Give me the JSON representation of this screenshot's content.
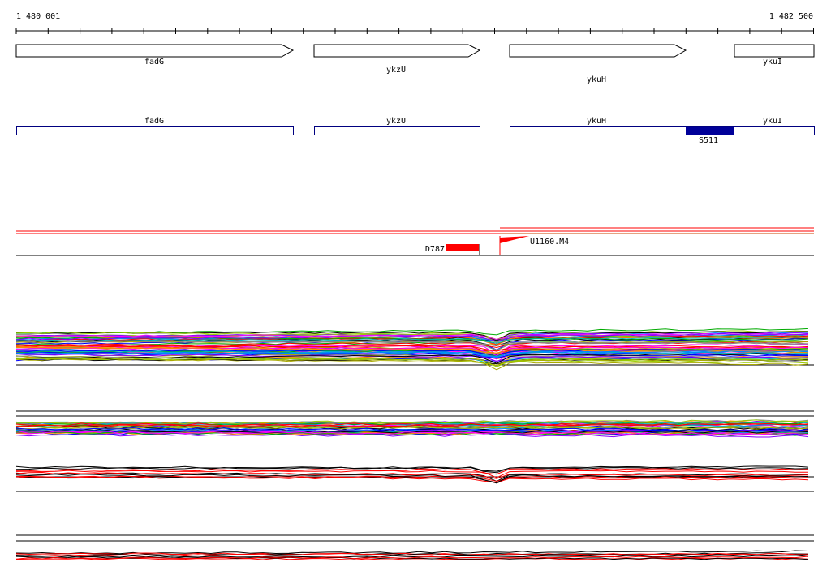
{
  "ruler": {
    "start_label": "1 480 001",
    "end_label": "1 482 500"
  },
  "genes": [
    {
      "name": "fadG",
      "strand": "+"
    },
    {
      "name": "ykzU",
      "strand": "+"
    },
    {
      "name": "ykuH",
      "strand": "+"
    },
    {
      "name": "ykuI",
      "strand": "+"
    }
  ],
  "annotations": [
    {
      "name": "fadG"
    },
    {
      "name": "ykzU"
    },
    {
      "name": "ykuH"
    },
    {
      "name": "ykuI"
    }
  ],
  "feature_label": "S511",
  "segments": [
    {
      "name": "D787",
      "color": "#ff0000"
    },
    {
      "name": "U1160.M4",
      "color": "#ff0000"
    }
  ],
  "colors": {
    "annotation_border": "#000080",
    "feature_fill": "#000099",
    "segment": "#ff0000",
    "profile_palette": [
      "#ff0000",
      "#00aa00",
      "#0000ff",
      "#ff00ff",
      "#00bbbb",
      "#aaaa00",
      "#ff8800",
      "#8800ff",
      "#0088ff",
      "#888888",
      "#000000",
      "#99cc00"
    ]
  }
}
